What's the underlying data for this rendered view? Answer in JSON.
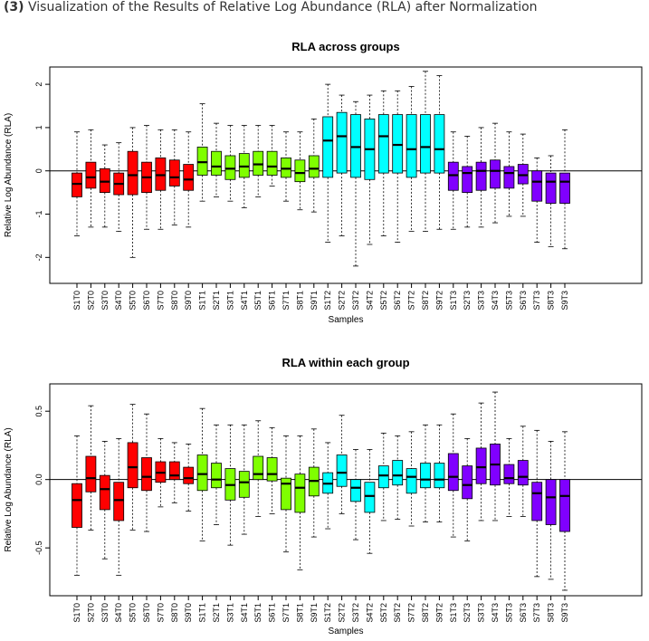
{
  "heading": {
    "number": "(3)",
    "text": "Visualization of the Results of Relative Log Abundance (RLA) after Normalization"
  },
  "chart_data": [
    {
      "type": "boxplot",
      "title": "RLA across groups",
      "xlabel": "Samples",
      "ylabel": "Relative Log Abundance (RLA)",
      "ylim": [
        -2.6,
        2.4
      ],
      "yticks": [
        -2,
        -1,
        0,
        1,
        2
      ],
      "reference_line": 0,
      "group_colors": [
        "#ff0000",
        "#7fff00",
        "#00ffff",
        "#8000ff"
      ],
      "categories": [
        "S1T0",
        "S2T0",
        "S3T0",
        "S4T0",
        "S5T0",
        "S6T0",
        "S7T0",
        "S8T0",
        "S9T0",
        "S1T1",
        "S2T1",
        "S3T1",
        "S4T1",
        "S5T1",
        "S6T1",
        "S7T1",
        "S8T1",
        "S9T1",
        "S1T2",
        "S2T2",
        "S3T2",
        "S4T2",
        "S5T2",
        "S6T2",
        "S7T2",
        "S8T2",
        "S9T2",
        "S1T3",
        "S2T3",
        "S3T3",
        "S4T3",
        "S5T3",
        "S6T3",
        "S7T3",
        "S8T3",
        "S9T3"
      ],
      "boxes": [
        {
          "min": -1.5,
          "q1": -0.6,
          "median": -0.3,
          "q3": -0.05,
          "max": 0.9
        },
        {
          "min": -1.3,
          "q1": -0.4,
          "median": -0.15,
          "q3": 0.2,
          "max": 0.95
        },
        {
          "min": -1.3,
          "q1": -0.5,
          "median": -0.25,
          "q3": 0.05,
          "max": 0.6
        },
        {
          "min": -1.4,
          "q1": -0.55,
          "median": -0.3,
          "q3": -0.05,
          "max": 0.65
        },
        {
          "min": -2.0,
          "q1": -0.55,
          "median": -0.1,
          "q3": 0.45,
          "max": 1.0
        },
        {
          "min": -1.35,
          "q1": -0.5,
          "median": -0.15,
          "q3": 0.2,
          "max": 1.05
        },
        {
          "min": -1.35,
          "q1": -0.45,
          "median": -0.1,
          "q3": 0.3,
          "max": 0.95
        },
        {
          "min": -1.25,
          "q1": -0.35,
          "median": -0.15,
          "q3": 0.25,
          "max": 0.95
        },
        {
          "min": -1.3,
          "q1": -0.45,
          "median": -0.2,
          "q3": 0.15,
          "max": 0.9
        },
        {
          "min": -0.7,
          "q1": -0.1,
          "median": 0.2,
          "q3": 0.55,
          "max": 1.55
        },
        {
          "min": -0.6,
          "q1": -0.1,
          "median": 0.1,
          "q3": 0.45,
          "max": 1.1
        },
        {
          "min": -0.7,
          "q1": -0.2,
          "median": 0.05,
          "q3": 0.35,
          "max": 1.05
        },
        {
          "min": -0.85,
          "q1": -0.15,
          "median": 0.1,
          "q3": 0.4,
          "max": 1.05
        },
        {
          "min": -0.6,
          "q1": -0.1,
          "median": 0.15,
          "q3": 0.45,
          "max": 1.05
        },
        {
          "min": -0.35,
          "q1": -0.1,
          "median": 0.1,
          "q3": 0.45,
          "max": 1.05
        },
        {
          "min": -0.7,
          "q1": -0.15,
          "median": 0.05,
          "q3": 0.3,
          "max": 0.9
        },
        {
          "min": -0.9,
          "q1": -0.25,
          "median": -0.05,
          "q3": 0.25,
          "max": 0.9
        },
        {
          "min": -0.95,
          "q1": -0.15,
          "median": 0.05,
          "q3": 0.35,
          "max": 1.2
        },
        {
          "min": -1.65,
          "q1": -0.15,
          "median": 0.7,
          "q3": 1.25,
          "max": 2.0
        },
        {
          "min": -1.5,
          "q1": -0.05,
          "median": 0.8,
          "q3": 1.35,
          "max": 1.75
        },
        {
          "min": -2.2,
          "q1": -0.15,
          "median": 0.55,
          "q3": 1.3,
          "max": 1.6
        },
        {
          "min": -1.7,
          "q1": -0.2,
          "median": 0.5,
          "q3": 1.2,
          "max": 1.75
        },
        {
          "min": -1.5,
          "q1": -0.05,
          "median": 0.8,
          "q3": 1.3,
          "max": 1.85
        },
        {
          "min": -1.65,
          "q1": -0.05,
          "median": 0.6,
          "q3": 1.3,
          "max": 1.85
        },
        {
          "min": -1.4,
          "q1": -0.15,
          "median": 0.5,
          "q3": 1.3,
          "max": 1.95
        },
        {
          "min": -1.4,
          "q1": -0.05,
          "median": 0.55,
          "q3": 1.3,
          "max": 2.3
        },
        {
          "min": -1.35,
          "q1": -0.05,
          "median": 0.5,
          "q3": 1.3,
          "max": 2.2
        },
        {
          "min": -1.35,
          "q1": -0.45,
          "median": -0.1,
          "q3": 0.2,
          "max": 0.9
        },
        {
          "min": -1.3,
          "q1": -0.5,
          "median": -0.05,
          "q3": 0.1,
          "max": 0.8
        },
        {
          "min": -1.3,
          "q1": -0.45,
          "median": 0.0,
          "q3": 0.2,
          "max": 1.0
        },
        {
          "min": -1.2,
          "q1": -0.4,
          "median": 0.0,
          "q3": 0.25,
          "max": 1.1
        },
        {
          "min": -1.05,
          "q1": -0.4,
          "median": -0.05,
          "q3": 0.1,
          "max": 0.9
        },
        {
          "min": -1.05,
          "q1": -0.3,
          "median": -0.1,
          "q3": 0.15,
          "max": 0.85
        },
        {
          "min": -1.65,
          "q1": -0.7,
          "median": -0.25,
          "q3": 0.0,
          "max": 0.3
        },
        {
          "min": -1.75,
          "q1": -0.75,
          "median": -0.25,
          "q3": -0.05,
          "max": 0.35
        },
        {
          "min": -1.8,
          "q1": -0.75,
          "median": -0.25,
          "q3": -0.05,
          "max": 0.95
        }
      ]
    },
    {
      "type": "boxplot",
      "title": "RLA within each group",
      "xlabel": "Samples",
      "ylabel": "Relative Log Abundance (RLA)",
      "ylim": [
        -0.85,
        0.7
      ],
      "yticks": [
        -0.5,
        0.0,
        0.5
      ],
      "ytick_labels": [
        "-0.5",
        "0.0",
        "0.5"
      ],
      "reference_line": 0,
      "group_colors": [
        "#ff0000",
        "#7fff00",
        "#00ffff",
        "#8000ff"
      ],
      "categories": [
        "S1T0",
        "S2T0",
        "S3T0",
        "S4T0",
        "S5T0",
        "S6T0",
        "S7T0",
        "S8T0",
        "S9T0",
        "S1T1",
        "S2T1",
        "S3T1",
        "S4T1",
        "S5T1",
        "S6T1",
        "S7T1",
        "S8T1",
        "S9T1",
        "S1T2",
        "S2T2",
        "S3T2",
        "S4T2",
        "S5T2",
        "S6T2",
        "S7T2",
        "S8T2",
        "S9T2",
        "S1T3",
        "S2T3",
        "S3T3",
        "S4T3",
        "S5T3",
        "S6T3",
        "S7T3",
        "S8T3",
        "S9T3"
      ],
      "boxes": [
        {
          "min": -0.7,
          "q1": -0.35,
          "median": -0.15,
          "q3": -0.03,
          "max": 0.32
        },
        {
          "min": -0.37,
          "q1": -0.09,
          "median": 0.01,
          "q3": 0.17,
          "max": 0.54
        },
        {
          "min": -0.58,
          "q1": -0.22,
          "median": -0.07,
          "q3": 0.03,
          "max": 0.28
        },
        {
          "min": -0.7,
          "q1": -0.3,
          "median": -0.15,
          "q3": -0.02,
          "max": 0.3
        },
        {
          "min": -0.37,
          "q1": -0.06,
          "median": 0.09,
          "q3": 0.27,
          "max": 0.55
        },
        {
          "min": -0.38,
          "q1": -0.08,
          "median": 0.02,
          "q3": 0.16,
          "max": 0.48
        },
        {
          "min": -0.2,
          "q1": -0.02,
          "median": 0.05,
          "q3": 0.13,
          "max": 0.3
        },
        {
          "min": -0.17,
          "q1": 0.0,
          "median": 0.03,
          "q3": 0.13,
          "max": 0.27
        },
        {
          "min": -0.23,
          "q1": -0.03,
          "median": 0.01,
          "q3": 0.09,
          "max": 0.26
        },
        {
          "min": -0.45,
          "q1": -0.08,
          "median": 0.04,
          "q3": 0.18,
          "max": 0.52
        },
        {
          "min": -0.33,
          "q1": -0.06,
          "median": 0.0,
          "q3": 0.12,
          "max": 0.4
        },
        {
          "min": -0.48,
          "q1": -0.15,
          "median": -0.04,
          "q3": 0.08,
          "max": 0.4
        },
        {
          "min": -0.4,
          "q1": -0.13,
          "median": -0.02,
          "q3": 0.06,
          "max": 0.4
        },
        {
          "min": -0.27,
          "q1": 0.0,
          "median": 0.04,
          "q3": 0.17,
          "max": 0.43
        },
        {
          "min": -0.25,
          "q1": -0.01,
          "median": 0.04,
          "q3": 0.16,
          "max": 0.38
        },
        {
          "min": -0.53,
          "q1": -0.22,
          "median": -0.03,
          "q3": 0.01,
          "max": 0.32
        },
        {
          "min": -0.66,
          "q1": -0.24,
          "median": -0.06,
          "q3": 0.04,
          "max": 0.32
        },
        {
          "min": -0.42,
          "q1": -0.12,
          "median": -0.01,
          "q3": 0.09,
          "max": 0.37
        },
        {
          "min": -0.36,
          "q1": -0.1,
          "median": -0.03,
          "q3": 0.05,
          "max": 0.27
        },
        {
          "min": -0.25,
          "q1": -0.05,
          "median": 0.05,
          "q3": 0.18,
          "max": 0.47
        },
        {
          "min": -0.44,
          "q1": -0.16,
          "median": -0.06,
          "q3": 0.0,
          "max": 0.22
        },
        {
          "min": -0.54,
          "q1": -0.24,
          "median": -0.12,
          "q3": -0.02,
          "max": 0.22
        },
        {
          "min": -0.3,
          "q1": -0.06,
          "median": 0.03,
          "q3": 0.1,
          "max": 0.34
        },
        {
          "min": -0.29,
          "q1": -0.04,
          "median": 0.03,
          "q3": 0.14,
          "max": 0.32
        },
        {
          "min": -0.34,
          "q1": -0.1,
          "median": 0.02,
          "q3": 0.08,
          "max": 0.35
        },
        {
          "min": -0.31,
          "q1": -0.06,
          "median": 0.0,
          "q3": 0.12,
          "max": 0.4
        },
        {
          "min": -0.31,
          "q1": -0.06,
          "median": 0.0,
          "q3": 0.12,
          "max": 0.4
        },
        {
          "min": -0.42,
          "q1": -0.08,
          "median": 0.02,
          "q3": 0.19,
          "max": 0.48
        },
        {
          "min": -0.45,
          "q1": -0.14,
          "median": -0.04,
          "q3": 0.1,
          "max": 0.3
        },
        {
          "min": -0.3,
          "q1": -0.03,
          "median": 0.09,
          "q3": 0.23,
          "max": 0.56
        },
        {
          "min": -0.3,
          "q1": -0.04,
          "median": 0.11,
          "q3": 0.26,
          "max": 0.64
        },
        {
          "min": -0.27,
          "q1": -0.03,
          "median": 0.01,
          "q3": 0.11,
          "max": 0.3
        },
        {
          "min": -0.27,
          "q1": -0.04,
          "median": 0.02,
          "q3": 0.14,
          "max": 0.39
        },
        {
          "min": -0.71,
          "q1": -0.3,
          "median": -0.1,
          "q3": -0.02,
          "max": 0.36
        },
        {
          "min": -0.73,
          "q1": -0.33,
          "median": -0.13,
          "q3": 0.0,
          "max": 0.28
        },
        {
          "min": -0.81,
          "q1": -0.38,
          "median": -0.12,
          "q3": 0.0,
          "max": 0.35
        }
      ]
    }
  ]
}
